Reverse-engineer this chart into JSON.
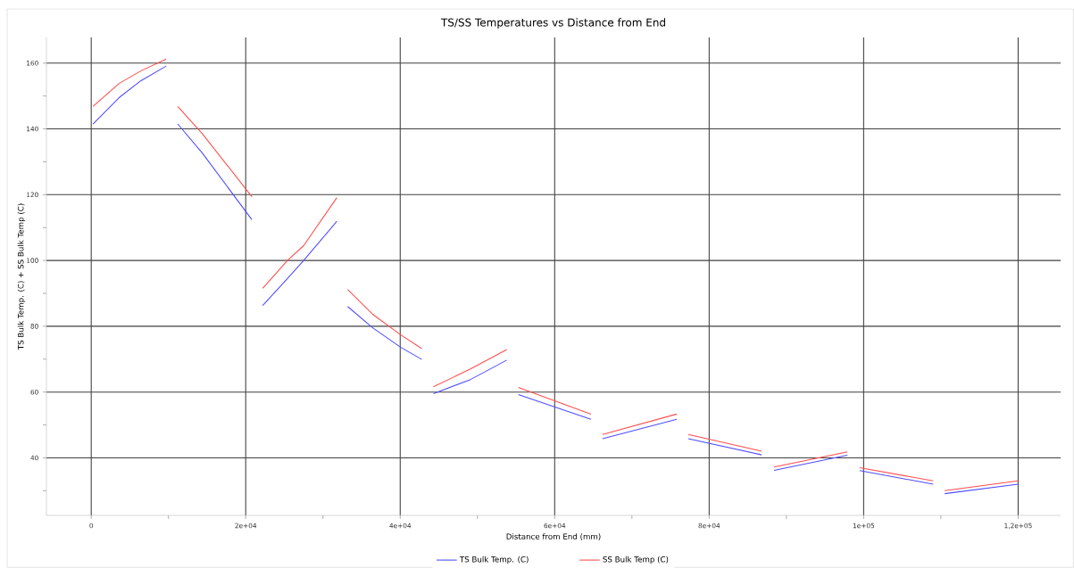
{
  "chart_data": {
    "type": "line",
    "title": "TS/SS Temperatures vs Distance from End",
    "xlabel": "Distance from End (mm)",
    "ylabel": "TS Bulk Temp. (C) + SS Bulk Temp (C)",
    "x": [
      230,
      3600,
      6400,
      9700,
      null,
      11200,
      14400,
      20800,
      null,
      22200,
      25400,
      27500,
      31800,
      null,
      33200,
      36400,
      40000,
      42800,
      null,
      44300,
      49100,
      53800,
      null,
      55300,
      64700,
      null,
      66200,
      75800,
      null,
      77300,
      86800,
      null,
      88400,
      97900,
      null,
      99500,
      109000,
      null,
      110500,
      120000
    ],
    "series": [
      {
        "name": "TS Bulk Temp. (C)",
        "color": "#4d4dff",
        "values": [
          141.5,
          149.5,
          154.6,
          159.1,
          null,
          141.5,
          132.6,
          112.4,
          null,
          86.3,
          94.5,
          100,
          111.9,
          null,
          86,
          79.6,
          73.7,
          69.9,
          null,
          59.5,
          63.8,
          69.7,
          null,
          59.2,
          51.7,
          null,
          45.8,
          51.7,
          null,
          45.8,
          40.9,
          null,
          36.2,
          40.8,
          null,
          36.1,
          32.0,
          null,
          29.1,
          32.0
        ]
      },
      {
        "name": "SS Bulk Temp (C)",
        "color": "#ff4d4d",
        "values": [
          146.8,
          153.8,
          157.6,
          161.2,
          null,
          146.8,
          138.5,
          119.4,
          null,
          91.5,
          100,
          104.5,
          119.1,
          null,
          91.2,
          83.7,
          77.5,
          73.2,
          null,
          61.6,
          67,
          72.9,
          null,
          61.4,
          53.3,
          null,
          47.1,
          53.3,
          null,
          47.1,
          42,
          null,
          37.2,
          41.8,
          null,
          37,
          33,
          null,
          30,
          33
        ]
      }
    ],
    "xlim": [
      -5800,
      125500
    ],
    "ylim": [
      22.5,
      167.8
    ],
    "xticks": [
      0,
      {
        "value": 10000,
        "label": null
      },
      {
        "value": 20000,
        "label": "2e+04"
      },
      {
        "value": 30000,
        "label": null
      },
      {
        "value": 40000,
        "label": "4e+04"
      },
      {
        "value": 50000,
        "label": null
      },
      {
        "value": 60000,
        "label": "6e+04"
      },
      {
        "value": 70000,
        "label": null
      },
      {
        "value": 80000,
        "label": "8e+04"
      },
      {
        "value": 90000,
        "label": null
      },
      {
        "value": 100000,
        "label": "1e+05"
      },
      {
        "value": 110000,
        "label": null
      },
      {
        "value": 120000,
        "label": "1,2e+05"
      }
    ],
    "yticks": [
      {
        "value": 30,
        "label": null
      },
      40,
      {
        "value": 50,
        "label": null
      },
      60,
      {
        "value": 70,
        "label": null
      },
      80,
      {
        "value": 90,
        "label": null
      },
      100,
      {
        "value": 110,
        "label": null
      },
      120,
      {
        "value": 130,
        "label": null
      },
      140,
      {
        "value": 150,
        "label": null
      },
      160
    ],
    "grid": true,
    "legend": "bottom",
    "marker": "none",
    "line_style": "solid"
  }
}
